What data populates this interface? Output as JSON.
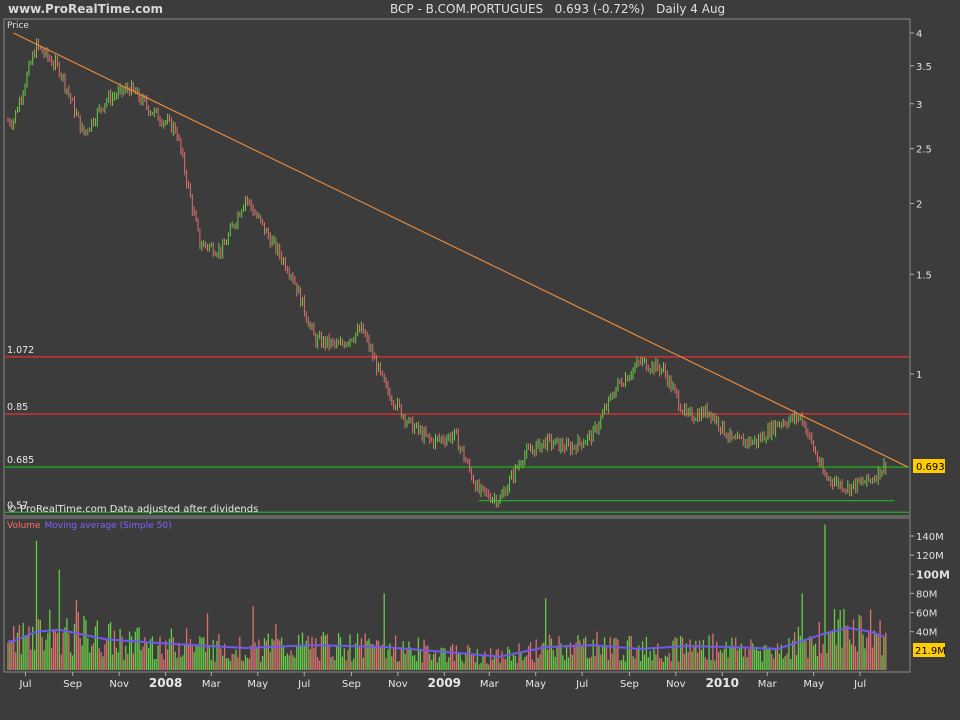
{
  "header": {
    "site": "www.ProRealTime.com",
    "title": "BCP - B.COM.PORTUGUES",
    "last": "0.693 (-0.72%)",
    "period": "Daily",
    "date": "4 Aug"
  },
  "price_panel": {
    "label": "Price",
    "note": "© ProRealTime.com  Data adjusted after dividends",
    "last_value_label": "0.693",
    "level_labels": [
      "1.072",
      "0.85",
      "0.685",
      "0.57"
    ]
  },
  "volume_panel": {
    "label_volume": "Volume",
    "label_ma": "Moving average (Simple 50)",
    "last_value_label": "21.9M"
  },
  "colors": {
    "background": "#3c3c3c",
    "up": "#66cc44",
    "down": "#e07070",
    "trendline": "#e88a3c",
    "resistance": "#e83030",
    "support": "#22aa22",
    "moving_average": "#6e5ce8",
    "last_price_box": "#ffcc00"
  },
  "chart_data": [
    {
      "type": "line",
      "name": "BCP daily price",
      "scale": "log",
      "ylim": [
        0.55,
        4.2
      ],
      "y_ticks": [
        4,
        3.5,
        3,
        2.5,
        2,
        1.5,
        1
      ],
      "x_ticks": [
        "Jul",
        "Sep",
        "Nov",
        "2008",
        "Mar",
        "May",
        "Jul",
        "Sep",
        "Nov",
        "2009",
        "Mar",
        "May",
        "Jul",
        "Sep",
        "Nov",
        "2010",
        "Mar",
        "May",
        "Jul"
      ],
      "x_range": [
        "2007-06",
        "2010-08-04"
      ],
      "series": [
        {
          "x": [
            "2007-06",
            "2007-07",
            "2007-08",
            "2007-09",
            "2007-10",
            "2007-11",
            "2007-12",
            "2008-01",
            "2008-02",
            "2008-03",
            "2008-04",
            "2008-05",
            "2008-06",
            "2008-07",
            "2008-08",
            "2008-09",
            "2008-10",
            "2008-11",
            "2008-12",
            "2009-01",
            "2009-02",
            "2009-03",
            "2009-04",
            "2009-05",
            "2009-06",
            "2009-07",
            "2009-08",
            "2009-09",
            "2009-10",
            "2009-11",
            "2009-12",
            "2010-01",
            "2010-02",
            "2010-03",
            "2010-04",
            "2010-05",
            "2010-06",
            "2010-07",
            "2010-08-04"
          ],
          "values": [
            2.8,
            3.8,
            3.45,
            2.65,
            3.05,
            3.2,
            2.9,
            2.7,
            1.7,
            1.65,
            2.05,
            1.75,
            1.5,
            1.15,
            1.12,
            1.2,
            0.95,
            0.82,
            0.76,
            0.78,
            0.62,
            0.6,
            0.72,
            0.76,
            0.74,
            0.78,
            0.95,
            1.05,
            1.02,
            0.84,
            0.86,
            0.76,
            0.76,
            0.82,
            0.84,
            0.66,
            0.63,
            0.65,
            0.693
          ]
        }
      ],
      "horizontal_levels": [
        {
          "label": "1.072",
          "value": 1.072,
          "color": "red"
        },
        {
          "label": "0.85",
          "value": 0.85,
          "color": "red"
        },
        {
          "label": "0.685",
          "value": 0.685,
          "color": "green"
        },
        {
          "label": "0.57",
          "value": 0.57,
          "color": "green"
        }
      ],
      "support_segments": [
        {
          "value": 0.6,
          "from": "2009-02",
          "to": "2010-08"
        }
      ],
      "trendline": {
        "from": {
          "x": "2007-06",
          "y": 4.0
        },
        "to": {
          "x": "2010-08",
          "y": 0.685
        }
      },
      "last_price": 0.693
    },
    {
      "type": "bar",
      "name": "Volume",
      "y_ticks": [
        "140M",
        "120M",
        "100M",
        "80M",
        "60M",
        "40M"
      ],
      "ylim": [
        0,
        150
      ],
      "unit": "M",
      "spikes": [
        {
          "x": "2007-07",
          "value": 135
        },
        {
          "x": "2007-08",
          "value": 105
        },
        {
          "x": "2008-10",
          "value": 80
        },
        {
          "x": "2009-05",
          "value": 75
        },
        {
          "x": "2010-04",
          "value": 80
        },
        {
          "x": "2010-05",
          "value": 152
        }
      ],
      "moving_average": {
        "x": [
          "2007-06",
          "2007-07",
          "2007-08",
          "2007-10",
          "2008-01",
          "2008-04",
          "2008-07",
          "2008-10",
          "2009-01",
          "2009-03",
          "2009-05",
          "2009-07",
          "2009-09",
          "2009-11",
          "2010-01",
          "2010-03",
          "2010-05",
          "2010-06",
          "2010-07",
          "2010-08-04"
        ],
        "values": [
          30,
          40,
          42,
          32,
          27,
          23,
          26,
          24,
          18,
          14,
          24,
          26,
          22,
          25,
          24,
          22,
          38,
          44,
          40,
          34
        ]
      },
      "last_value": 21.9
    }
  ]
}
